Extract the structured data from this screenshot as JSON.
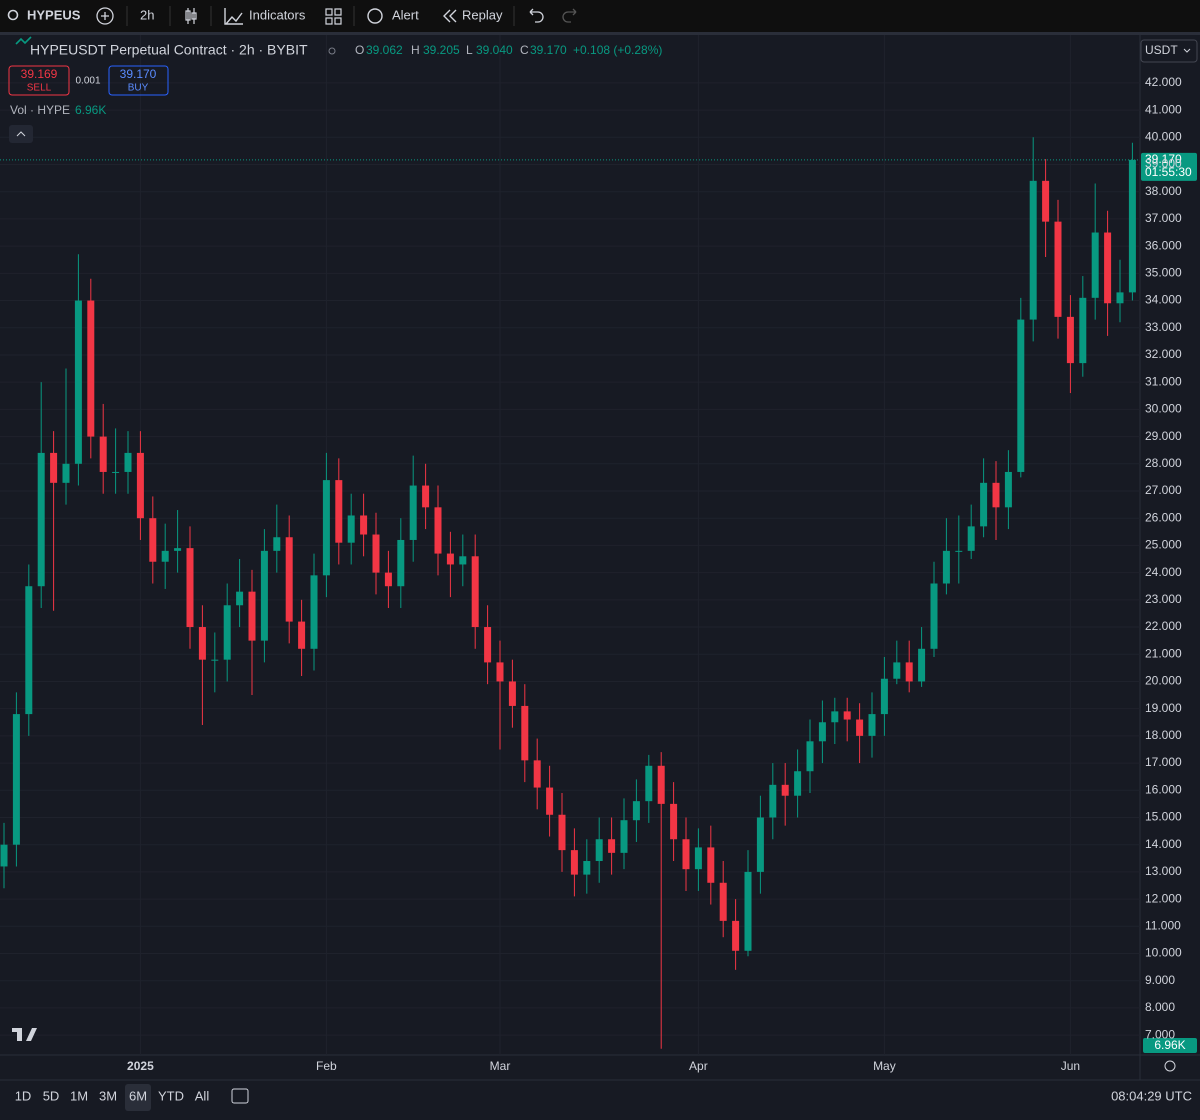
{
  "toolbar": {
    "symbol": "HYPEUS",
    "interval": "2h",
    "buttons": [
      "Indicators",
      "Alert",
      "Replay"
    ]
  },
  "legend": {
    "title": "HYPEUSDT Perpetual Contract · 2h · BYBIT",
    "ohlc": [
      {
        "key": "O",
        "value": "39.062"
      },
      {
        "key": "H",
        "value": "39.205"
      },
      {
        "key": "L",
        "value": "39.040"
      },
      {
        "key": "C",
        "value": "39.170"
      }
    ],
    "change": "+0.108 (+0.28%)",
    "sell": {
      "price": "39.169",
      "label": "SELL"
    },
    "spread": "0.001",
    "buy": {
      "price": "39.170",
      "label": "BUY"
    },
    "volume": {
      "label": "Vol · HYPE",
      "value": "6.96K"
    }
  },
  "chart_data": {
    "type": "candlestick",
    "categories": [
      null,
      null,
      null,
      null,
      null,
      null,
      null,
      null,
      null,
      null,
      null,
      "2025",
      null,
      null,
      null,
      null,
      null,
      null,
      null,
      null,
      null,
      null,
      null,
      null,
      null,
      null,
      "Feb",
      null,
      null,
      null,
      null,
      null,
      null,
      null,
      null,
      null,
      null,
      null,
      null,
      null,
      "Mar",
      null,
      null,
      null,
      null,
      null,
      null,
      null,
      null,
      null,
      null,
      null,
      null,
      null,
      null,
      null,
      "Apr",
      null,
      null,
      null,
      null,
      null,
      null,
      null,
      null,
      null,
      null,
      null,
      null,
      null,
      null,
      "May",
      null,
      null,
      null,
      null,
      null,
      null,
      null,
      null,
      null,
      null,
      null,
      null,
      null,
      null,
      "Jun",
      null,
      null,
      null,
      null,
      null
    ],
    "open": [
      13.2,
      14.0,
      18.8,
      23.5,
      28.4,
      27.3,
      28.0,
      34.0,
      29.0,
      27.7,
      27.7,
      28.4,
      26.0,
      24.4,
      24.8,
      24.9,
      22.0,
      20.8,
      20.8,
      22.8,
      23.3,
      21.5,
      24.8,
      25.3,
      22.2,
      21.2,
      23.9,
      27.4,
      25.1,
      26.1,
      25.4,
      24.0,
      23.5,
      25.2,
      27.2,
      26.4,
      24.7,
      24.3,
      24.6,
      22.0,
      20.7,
      20.0,
      19.1,
      17.1,
      16.1,
      15.1,
      13.8,
      12.9,
      13.4,
      14.2,
      13.7,
      14.9,
      15.6,
      16.9,
      15.5,
      14.2,
      13.1,
      13.9,
      12.6,
      11.2,
      10.1,
      13.0,
      15.0,
      16.2,
      15.8,
      16.7,
      17.8,
      18.5,
      18.9,
      18.6,
      18.0,
      18.8,
      20.1,
      20.7,
      20.0,
      21.2,
      23.6,
      24.8,
      24.8,
      25.7,
      27.3,
      26.4,
      27.7,
      33.3,
      38.4,
      36.9,
      33.4,
      31.7,
      34.1,
      36.5,
      33.9,
      34.3
    ],
    "high": [
      14.8,
      19.6,
      24.3,
      31.0,
      29.2,
      31.5,
      35.7,
      34.8,
      30.2,
      29.3,
      29.2,
      29.2,
      26.8,
      25.8,
      26.3,
      25.7,
      22.8,
      21.8,
      23.6,
      24.5,
      24.1,
      25.6,
      26.5,
      26.1,
      23.0,
      24.7,
      28.4,
      28.2,
      26.9,
      26.9,
      26.2,
      24.8,
      26.0,
      28.3,
      28.0,
      27.2,
      25.5,
      25.4,
      25.4,
      22.8,
      21.5,
      20.8,
      19.9,
      17.9,
      16.9,
      15.9,
      14.6,
      14.2,
      15.0,
      15.0,
      15.7,
      16.4,
      17.3,
      17.4,
      16.3,
      15.0,
      14.6,
      14.7,
      13.4,
      12.0,
      13.8,
      15.8,
      17.0,
      17.0,
      17.5,
      18.6,
      19.3,
      19.4,
      19.4,
      19.2,
      19.6,
      20.9,
      21.5,
      21.5,
      22.0,
      24.4,
      26.0,
      26.1,
      26.5,
      28.2,
      28.1,
      28.5,
      34.1,
      40.0,
      39.2,
      37.7,
      34.2,
      34.9,
      38.3,
      37.3,
      35.5,
      39.8
    ],
    "low": [
      12.4,
      13.2,
      18.0,
      22.7,
      22.6,
      26.5,
      27.2,
      28.2,
      26.9,
      26.9,
      26.9,
      25.2,
      23.6,
      23.4,
      24.0,
      21.2,
      18.4,
      19.6,
      20.0,
      22.0,
      19.5,
      20.7,
      24.0,
      21.4,
      20.2,
      20.4,
      23.1,
      24.3,
      24.3,
      24.6,
      23.2,
      22.7,
      22.7,
      24.4,
      25.6,
      23.9,
      23.1,
      23.5,
      21.2,
      19.9,
      17.5,
      18.3,
      16.3,
      15.3,
      14.3,
      13.0,
      12.1,
      12.2,
      12.6,
      12.9,
      13.1,
      14.1,
      14.8,
      6.5,
      13.4,
      12.3,
      12.3,
      11.8,
      10.6,
      9.4,
      9.9,
      12.2,
      14.2,
      14.7,
      15.0,
      15.9,
      17.0,
      17.7,
      17.8,
      17.0,
      17.2,
      18.0,
      19.9,
      19.6,
      19.8,
      20.9,
      23.2,
      23.6,
      24.5,
      25.3,
      25.2,
      25.6,
      27.5,
      32.5,
      35.6,
      32.6,
      30.6,
      31.2,
      33.3,
      32.7,
      33.2,
      34.0
    ],
    "close": [
      14.0,
      18.8,
      23.5,
      28.4,
      27.3,
      28.0,
      34.0,
      29.0,
      27.7,
      27.7,
      28.4,
      26.0,
      24.4,
      24.8,
      24.9,
      22.0,
      20.8,
      20.8,
      22.8,
      23.3,
      21.5,
      24.8,
      25.3,
      22.2,
      21.2,
      23.9,
      27.4,
      25.1,
      26.1,
      25.4,
      24.0,
      23.5,
      25.2,
      27.2,
      26.4,
      24.7,
      24.3,
      24.6,
      22.0,
      20.7,
      20.0,
      19.1,
      17.1,
      16.1,
      15.1,
      13.8,
      12.9,
      13.4,
      14.2,
      13.7,
      14.9,
      15.6,
      16.9,
      15.5,
      14.2,
      13.1,
      13.9,
      12.6,
      11.2,
      10.1,
      13.0,
      15.0,
      16.2,
      15.8,
      16.7,
      17.8,
      18.5,
      18.9,
      18.6,
      18.0,
      18.8,
      20.1,
      20.7,
      20.0,
      21.2,
      23.6,
      24.8,
      24.8,
      25.7,
      27.3,
      26.4,
      27.7,
      33.3,
      38.4,
      36.9,
      33.4,
      31.7,
      34.1,
      36.5,
      33.9,
      34.3,
      39.17
    ],
    "up_color": "#089981",
    "down_color": "#f23645",
    "ylim": [
      6.27,
      43.76
    ],
    "yticks": [
      {
        "value": 7,
        "label": "7.000"
      },
      {
        "value": 8,
        "label": "8.000"
      },
      {
        "value": 9,
        "label": "9.000"
      },
      {
        "value": 10,
        "label": "10.000"
      },
      {
        "value": 11,
        "label": "11.000"
      },
      {
        "value": 12,
        "label": "12.000"
      },
      {
        "value": 13,
        "label": "13.000"
      },
      {
        "value": 14,
        "label": "14.000"
      },
      {
        "value": 15,
        "label": "15.000"
      },
      {
        "value": 16,
        "label": "16.000"
      },
      {
        "value": 17,
        "label": "17.000"
      },
      {
        "value": 18,
        "label": "18.000"
      },
      {
        "value": 19,
        "label": "19.000"
      },
      {
        "value": 20,
        "label": "20.000"
      },
      {
        "value": 21,
        "label": "21.000"
      },
      {
        "value": 22,
        "label": "22.000"
      },
      {
        "value": 23,
        "label": "23.000"
      },
      {
        "value": 24,
        "label": "24.000"
      },
      {
        "value": 25,
        "label": "25.000"
      },
      {
        "value": 26,
        "label": "26.000"
      },
      {
        "value": 27,
        "label": "27.000"
      },
      {
        "value": 28,
        "label": "28.000"
      },
      {
        "value": 29,
        "label": "29.000"
      },
      {
        "value": 30,
        "label": "30.000"
      },
      {
        "value": 31,
        "label": "31.000"
      },
      {
        "value": 32,
        "label": "32.000"
      },
      {
        "value": 33,
        "label": "33.000"
      },
      {
        "value": 34,
        "label": "34.000"
      },
      {
        "value": 35,
        "label": "35.000"
      },
      {
        "value": 36,
        "label": "36.000"
      },
      {
        "value": 37,
        "label": "37.000"
      },
      {
        "value": 38,
        "label": "38.000"
      },
      {
        "value": 39,
        "label": "39.000"
      },
      {
        "value": 40,
        "label": "40.000"
      },
      {
        "value": 41,
        "label": "41.000"
      },
      {
        "value": 42,
        "label": "42.000"
      }
    ],
    "grid": true,
    "currency": "USDT",
    "last_price": {
      "value": 39.17,
      "label": "39.170",
      "countdown": "01:55:30"
    },
    "volume_last": "6.96K"
  },
  "footer": {
    "ranges": [
      "1D",
      "5D",
      "1M",
      "3M",
      "6M",
      "YTD",
      "All"
    ],
    "active_range": 4,
    "time": "08:04:29 UTC"
  }
}
